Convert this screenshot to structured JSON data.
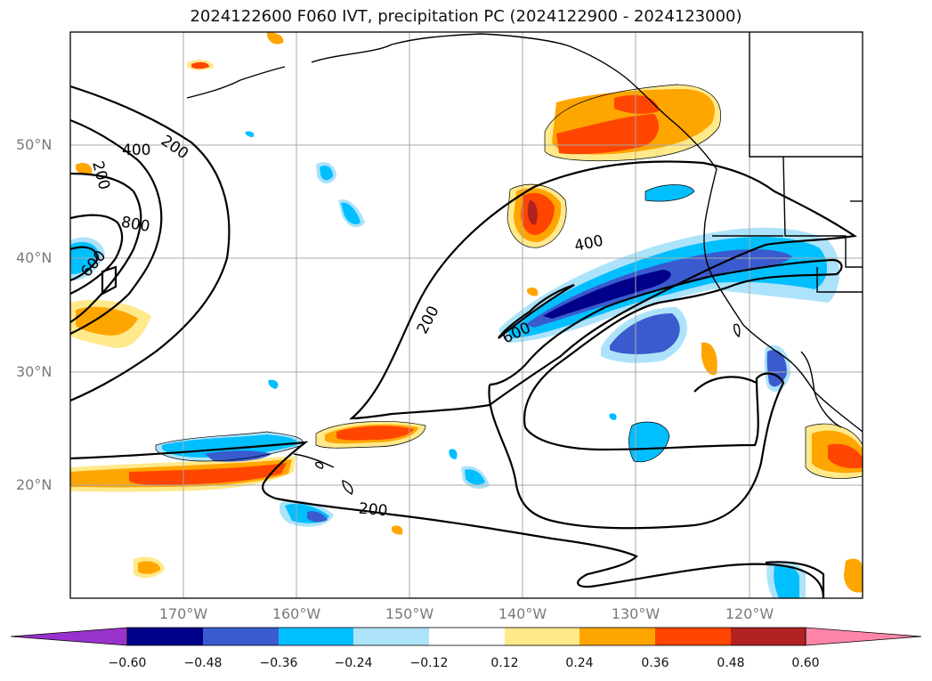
{
  "title": "2024122600 F060 IVT, precipitation PC (2024122900 - 2024123000)",
  "lat_labels": [
    "50°N",
    "40°N",
    "30°N",
    "20°N"
  ],
  "lon_labels": [
    "170°W",
    "160°W",
    "150°W",
    "140°W",
    "130°W",
    "120°W"
  ],
  "contour_labels": [
    "400",
    "200",
    "200",
    "800",
    "600",
    "400",
    "200",
    "600",
    "200"
  ],
  "colorbar": {
    "ticks": [
      "−0.60",
      "−0.48",
      "−0.36",
      "−0.24",
      "−0.12",
      "0.12",
      "0.24",
      "0.36",
      "0.48",
      "0.60"
    ],
    "colors": [
      "#9932CC",
      "#00008B",
      "#3A5BCE",
      "#00BFFF",
      "#ADE3FA",
      "#FFFFFF",
      "#FFE98A",
      "#FFA500",
      "#FF4500",
      "#B22222",
      "#FF85A8"
    ]
  },
  "chart_data": {
    "type": "map",
    "projection": "equirectangular",
    "lon_range": [
      -180,
      -110
    ],
    "lat_range": [
      10,
      60
    ],
    "contour_field": "IVT",
    "contour_levels": [
      200,
      400,
      600,
      800
    ],
    "fill_field": "precipitation PC",
    "fill_levels": [
      -0.6,
      -0.48,
      -0.36,
      -0.24,
      -0.12,
      0.12,
      0.24,
      0.36,
      0.48,
      0.6
    ]
  }
}
